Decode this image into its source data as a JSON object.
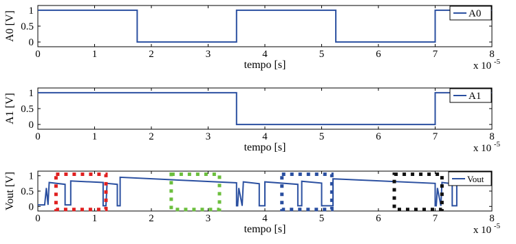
{
  "figure": {
    "exponent_label": "x 10",
    "exponent_power": "-5"
  },
  "chart_data": [
    {
      "type": "line",
      "xlabel": "tempo [s]",
      "ylabel": "A0 [V]",
      "xlim": [
        0,
        8
      ],
      "ylim": [
        -0.15,
        1.15
      ],
      "x_ticks": [
        "0",
        "1",
        "2",
        "3",
        "4",
        "5",
        "6",
        "7",
        "8"
      ],
      "y_ticks": [
        "0",
        "0.5",
        "1"
      ],
      "legend": {
        "position": "top-right",
        "entries": [
          "A0"
        ]
      },
      "series": [
        {
          "name": "A0",
          "color": "#2a4fa0",
          "x": [
            0,
            1.75,
            1.75,
            3.5,
            3.5,
            5.25,
            5.25,
            7.0,
            7.0,
            8.0
          ],
          "y": [
            1,
            1,
            0,
            0,
            1,
            1,
            0,
            0,
            1,
            1
          ]
        }
      ]
    },
    {
      "type": "line",
      "xlabel": "tempo [s]",
      "ylabel": "A1 [V]",
      "xlim": [
        0,
        8
      ],
      "ylim": [
        -0.15,
        1.15
      ],
      "x_ticks": [
        "0",
        "1",
        "2",
        "3",
        "4",
        "5",
        "6",
        "7",
        "8"
      ],
      "y_ticks": [
        "0",
        "0.5",
        "1"
      ],
      "legend": {
        "position": "top-right",
        "entries": [
          "A1"
        ]
      },
      "series": [
        {
          "name": "A1",
          "color": "#2a4fa0",
          "x": [
            0,
            3.5,
            3.5,
            7.0,
            7.0,
            8.0
          ],
          "y": [
            1,
            1,
            0,
            0,
            1,
            1
          ]
        }
      ]
    },
    {
      "type": "line",
      "xlabel": "tempo [s]",
      "ylabel": "Vout [V]",
      "xlim": [
        0,
        8
      ],
      "ylim": [
        -0.15,
        1.15
      ],
      "x_ticks": [
        "0",
        "1",
        "2",
        "3",
        "4",
        "5",
        "6",
        "7",
        "8"
      ],
      "y_ticks": [
        "0",
        "0.5",
        "1"
      ],
      "legend": {
        "position": "top-right",
        "entries": [
          "Vout"
        ]
      },
      "series": [
        {
          "name": "Vout",
          "color": "#2a4fa0",
          "x": [
            0,
            0.12,
            0.15,
            0.18,
            0.2,
            0.48,
            0.48,
            0.58,
            0.58,
            1.15,
            1.15,
            1.2,
            1.22,
            1.4,
            1.4,
            1.45,
            1.45,
            3.5,
            3.5,
            3.52,
            3.54,
            3.6,
            3.62,
            3.9,
            3.9,
            4.0,
            4.0,
            4.58,
            4.58,
            4.65,
            4.65,
            5.0,
            5.0,
            5.2,
            5.2,
            7.0,
            7.0,
            7.02,
            7.04,
            7.1,
            7.12,
            7.3,
            7.3,
            7.38,
            7.38,
            7.95,
            7.95
          ],
          "y": [
            0.05,
            0.05,
            0.6,
            0.05,
            0.78,
            0.72,
            0.05,
            0.05,
            0.83,
            0.78,
            0.02,
            0.02,
            0.75,
            0.72,
            0.02,
            0.02,
            0.95,
            0.77,
            0.02,
            0.02,
            0.6,
            0.02,
            0.8,
            0.74,
            0.02,
            0.02,
            0.8,
            0.72,
            0.02,
            0.02,
            0.82,
            0.76,
            0.02,
            0.02,
            0.9,
            0.75,
            0.02,
            0.02,
            0.6,
            0.02,
            0.78,
            0.74,
            0.02,
            0.02,
            0.8,
            0.72,
            0.72
          ]
        }
      ],
      "annotations": [
        {
          "shape": "dotted-rectangle",
          "color": "#e02020",
          "x": [
            0.32,
            1.2
          ],
          "y": [
            -0.1,
            1.05
          ]
        },
        {
          "shape": "dotted-rectangle",
          "color": "#6cbf3e",
          "x": [
            2.35,
            3.2
          ],
          "y": [
            -0.1,
            1.05
          ]
        },
        {
          "shape": "dotted-rectangle",
          "color": "#2a4fa0",
          "x": [
            4.3,
            5.18
          ],
          "y": [
            -0.1,
            1.05
          ]
        },
        {
          "shape": "dotted-rectangle",
          "color": "#111111",
          "x": [
            6.28,
            7.12
          ],
          "y": [
            -0.1,
            1.05
          ]
        }
      ]
    }
  ]
}
